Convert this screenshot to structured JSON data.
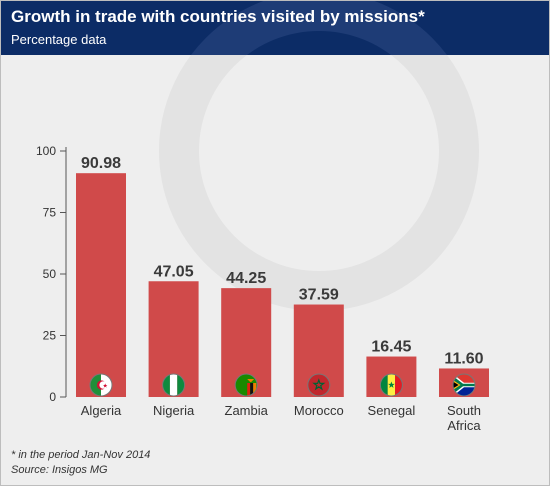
{
  "header": {
    "title": "Growth in trade with countries visited by missions*",
    "subtitle": "Percentage data"
  },
  "chart_data": {
    "type": "bar",
    "title": "Growth in trade with countries visited by missions*",
    "subtitle": "Percentage data",
    "xlabel": "",
    "ylabel": "",
    "categories": [
      "Algeria",
      "Nigeria",
      "Zambia",
      "Morocco",
      "Senegal",
      "South Africa"
    ],
    "category_lines": [
      [
        "Algeria"
      ],
      [
        "Nigeria"
      ],
      [
        "Zambia"
      ],
      [
        "Morocco"
      ],
      [
        "Senegal"
      ],
      [
        "South",
        "Africa"
      ]
    ],
    "values": [
      90.98,
      47.05,
      44.25,
      37.59,
      16.45,
      11.6
    ],
    "value_labels": [
      "90.98",
      "47.05",
      "44.25",
      "37.59",
      "16.45",
      "11.60"
    ],
    "ylim": [
      0,
      100
    ],
    "yticks": [
      0,
      25,
      50,
      75,
      100
    ],
    "grid": false,
    "legend": "none",
    "bar_color": "#d04a4a",
    "flags": [
      "algeria-flag-icon",
      "nigeria-flag-icon",
      "zambia-flag-icon",
      "morocco-flag-icon",
      "senegal-flag-icon",
      "south-africa-flag-icon"
    ]
  },
  "footnotes": {
    "note": "* in the period Jan-Nov 2014",
    "source": "Source: Insigos MG"
  },
  "colors": {
    "header_bg": "#0c2c66",
    "background": "#eeeeee",
    "bar": "#d04a4a"
  }
}
